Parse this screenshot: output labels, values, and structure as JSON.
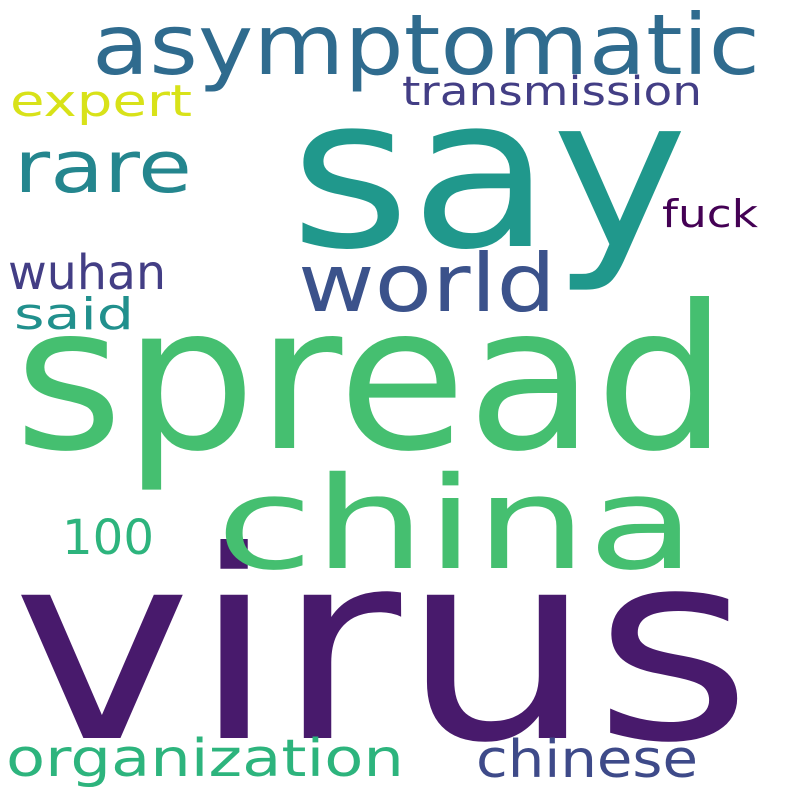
{
  "word_cloud": {
    "words": [
      {
        "text": "virus",
        "color": "#481A6C"
      },
      {
        "text": "spread",
        "color": "#45BF70"
      },
      {
        "text": "say",
        "color": "#20988C"
      },
      {
        "text": "china",
        "color": "#45BF70"
      },
      {
        "text": "asymptomatic",
        "color": "#2F6B8E"
      },
      {
        "text": "world",
        "color": "#3B528B"
      },
      {
        "text": "rare",
        "color": "#24868E"
      },
      {
        "text": "organization",
        "color": "#2DB47D"
      },
      {
        "text": "chinese",
        "color": "#3E4A89"
      },
      {
        "text": "transmission",
        "color": "#433E85"
      },
      {
        "text": "expert",
        "color": "#D8E219"
      },
      {
        "text": "wuhan",
        "color": "#433E85"
      },
      {
        "text": "fuck",
        "color": "#440154"
      },
      {
        "text": "said",
        "color": "#21908D"
      },
      {
        "text": "100",
        "color": "#2DB47D"
      }
    ]
  }
}
